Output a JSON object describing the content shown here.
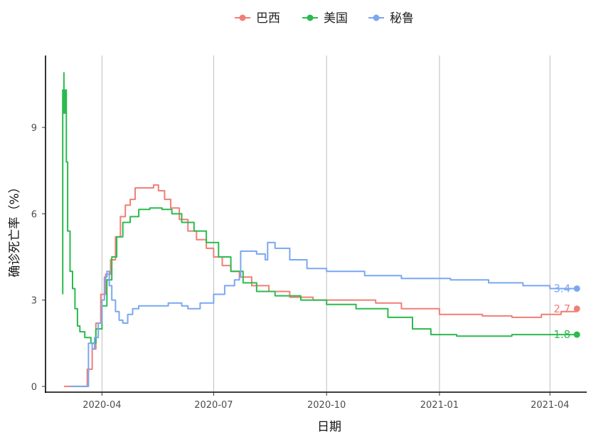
{
  "chart_data": {
    "type": "line",
    "title": "",
    "xlabel": "日期",
    "ylabel": "确诊死亡率（%）",
    "xlim": [
      "2020-02-15",
      "2021-05-01"
    ],
    "ylim": [
      -0.2,
      11.5
    ],
    "x_ticks": [
      "2020-04",
      "2020-07",
      "2020-10",
      "2021-01",
      "2021-04"
    ],
    "x_tick_dates": [
      "2020-04-01",
      "2020-07-01",
      "2020-10-01",
      "2021-01-01",
      "2021-04-01"
    ],
    "y_ticks": [
      0,
      3,
      6,
      9
    ],
    "grid": "vertical-major",
    "legend_position": "top",
    "series": [
      {
        "name": "巴西",
        "color": "#F07F76",
        "end_label": "2.7",
        "points": [
          [
            "2020-03-01",
            0
          ],
          [
            "2020-03-15",
            0
          ],
          [
            "2020-03-20",
            0.6
          ],
          [
            "2020-03-24",
            1.3
          ],
          [
            "2020-03-27",
            2.2
          ],
          [
            "2020-03-31",
            3.2
          ],
          [
            "2020-04-04",
            3.9
          ],
          [
            "2020-04-08",
            4.4
          ],
          [
            "2020-04-12",
            5.2
          ],
          [
            "2020-04-16",
            5.9
          ],
          [
            "2020-04-20",
            6.3
          ],
          [
            "2020-04-24",
            6.5
          ],
          [
            "2020-04-28",
            6.9
          ],
          [
            "2020-05-03",
            6.9
          ],
          [
            "2020-05-08",
            6.9
          ],
          [
            "2020-05-13",
            7.0
          ],
          [
            "2020-05-17",
            6.8
          ],
          [
            "2020-05-22",
            6.5
          ],
          [
            "2020-05-27",
            6.2
          ],
          [
            "2020-06-03",
            5.8
          ],
          [
            "2020-06-10",
            5.4
          ],
          [
            "2020-06-17",
            5.1
          ],
          [
            "2020-06-25",
            4.8
          ],
          [
            "2020-07-01",
            4.5
          ],
          [
            "2020-07-08",
            4.2
          ],
          [
            "2020-07-15",
            4.0
          ],
          [
            "2020-07-22",
            3.8
          ],
          [
            "2020-08-01",
            3.5
          ],
          [
            "2020-08-15",
            3.3
          ],
          [
            "2020-09-01",
            3.1
          ],
          [
            "2020-09-20",
            3.0
          ],
          [
            "2020-10-15",
            3.0
          ],
          [
            "2020-11-10",
            2.9
          ],
          [
            "2020-12-01",
            2.7
          ],
          [
            "2021-01-01",
            2.5
          ],
          [
            "2021-02-05",
            2.45
          ],
          [
            "2021-03-01",
            2.4
          ],
          [
            "2021-03-25",
            2.5
          ],
          [
            "2021-04-10",
            2.6
          ],
          [
            "2021-04-23",
            2.7
          ]
        ]
      },
      {
        "name": "美国",
        "color": "#2BBA4F",
        "end_label": "1.8",
        "points": [
          [
            "2020-02-29",
            3.2
          ],
          [
            "2020-02-29",
            10.3
          ],
          [
            "2020-03-01",
            10.9
          ],
          [
            "2020-03-01",
            9.5
          ],
          [
            "2020-03-02",
            10.3
          ],
          [
            "2020-03-03",
            7.8
          ],
          [
            "2020-03-04",
            5.4
          ],
          [
            "2020-03-06",
            4.0
          ],
          [
            "2020-03-08",
            3.4
          ],
          [
            "2020-03-10",
            2.7
          ],
          [
            "2020-03-12",
            2.1
          ],
          [
            "2020-03-14",
            1.9
          ],
          [
            "2020-03-18",
            1.7
          ],
          [
            "2020-03-23",
            1.5
          ],
          [
            "2020-03-27",
            2.0
          ],
          [
            "2020-04-01",
            2.8
          ],
          [
            "2020-04-05",
            3.7
          ],
          [
            "2020-04-09",
            4.5
          ],
          [
            "2020-04-13",
            5.2
          ],
          [
            "2020-04-18",
            5.7
          ],
          [
            "2020-04-24",
            5.9
          ],
          [
            "2020-05-01",
            6.15
          ],
          [
            "2020-05-10",
            6.2
          ],
          [
            "2020-05-20",
            6.15
          ],
          [
            "2020-05-28",
            6.0
          ],
          [
            "2020-06-05",
            5.7
          ],
          [
            "2020-06-15",
            5.4
          ],
          [
            "2020-06-25",
            5.0
          ],
          [
            "2020-07-05",
            4.5
          ],
          [
            "2020-07-15",
            4.0
          ],
          [
            "2020-07-25",
            3.6
          ],
          [
            "2020-08-05",
            3.3
          ],
          [
            "2020-08-20",
            3.15
          ],
          [
            "2020-09-10",
            3.0
          ],
          [
            "2020-10-01",
            2.85
          ],
          [
            "2020-10-25",
            2.7
          ],
          [
            "2020-11-20",
            2.4
          ],
          [
            "2020-12-10",
            2.0
          ],
          [
            "2020-12-25",
            1.8
          ],
          [
            "2021-01-15",
            1.75
          ],
          [
            "2021-02-10",
            1.75
          ],
          [
            "2021-03-01",
            1.8
          ],
          [
            "2021-04-23",
            1.8
          ]
        ]
      },
      {
        "name": "秘鲁",
        "color": "#7AA7F1",
        "end_label": "3.4",
        "points": [
          [
            "2020-03-06",
            0
          ],
          [
            "2020-03-20",
            0
          ],
          [
            "2020-03-21",
            1.5
          ],
          [
            "2020-03-24",
            1.3
          ],
          [
            "2020-03-26",
            1.7
          ],
          [
            "2020-03-29",
            2.2
          ],
          [
            "2020-04-01",
            3.0
          ],
          [
            "2020-04-03",
            3.8
          ],
          [
            "2020-04-05",
            4.0
          ],
          [
            "2020-04-07",
            3.5
          ],
          [
            "2020-04-09",
            3.0
          ],
          [
            "2020-04-12",
            2.6
          ],
          [
            "2020-04-15",
            2.3
          ],
          [
            "2020-04-18",
            2.2
          ],
          [
            "2020-04-22",
            2.5
          ],
          [
            "2020-04-26",
            2.7
          ],
          [
            "2020-05-01",
            2.8
          ],
          [
            "2020-05-15",
            2.8
          ],
          [
            "2020-05-25",
            2.9
          ],
          [
            "2020-06-05",
            2.8
          ],
          [
            "2020-06-10",
            2.7
          ],
          [
            "2020-06-20",
            2.9
          ],
          [
            "2020-07-01",
            3.2
          ],
          [
            "2020-07-10",
            3.5
          ],
          [
            "2020-07-18",
            3.7
          ],
          [
            "2020-07-22",
            3.8
          ],
          [
            "2020-07-23",
            4.7
          ],
          [
            "2020-08-05",
            4.6
          ],
          [
            "2020-08-12",
            4.4
          ],
          [
            "2020-08-14",
            5.0
          ],
          [
            "2020-08-20",
            4.8
          ],
          [
            "2020-09-01",
            4.4
          ],
          [
            "2020-09-15",
            4.1
          ],
          [
            "2020-10-01",
            4.0
          ],
          [
            "2020-11-01",
            3.85
          ],
          [
            "2020-12-01",
            3.75
          ],
          [
            "2021-01-10",
            3.7
          ],
          [
            "2021-02-10",
            3.6
          ],
          [
            "2021-03-10",
            3.5
          ],
          [
            "2021-04-01",
            3.4
          ],
          [
            "2021-04-23",
            3.4
          ]
        ]
      }
    ]
  }
}
